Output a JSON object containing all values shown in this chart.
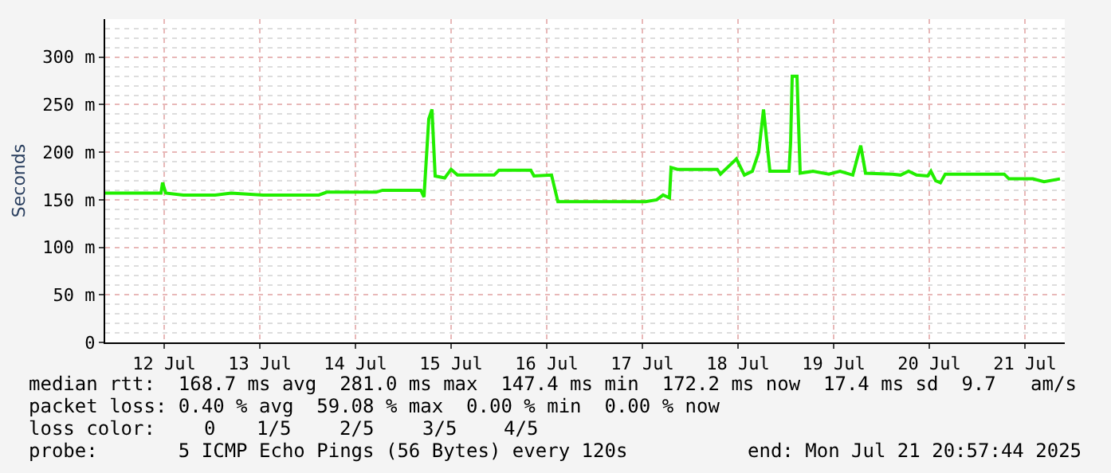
{
  "chart_data": {
    "type": "line",
    "ylabel": "Seconds",
    "x": [
      "2025-07-11T21:12",
      "2025-07-12T11:12",
      "2025-07-12T11:36",
      "2025-07-12T12:24",
      "2025-07-12T16:48",
      "2025-07-13T00:48",
      "2025-07-13T04:48",
      "2025-07-13T12:48",
      "2025-07-14T02:48",
      "2025-07-14T04:48",
      "2025-07-14T17:12",
      "2025-07-14T18:48",
      "2025-07-15T04:24",
      "2025-07-15T05:12",
      "2025-07-15T06:24",
      "2025-07-15T07:12",
      "2025-07-15T08:00",
      "2025-07-15T10:24",
      "2025-07-15T12:00",
      "2025-07-15T13:36",
      "2025-07-15T22:48",
      "2025-07-16T00:00",
      "2025-07-16T08:00",
      "2025-07-16T08:48",
      "2025-07-16T13:12",
      "2025-07-16T14:48",
      "2025-07-17T12:48",
      "2025-07-17T15:36",
      "2025-07-17T17:12",
      "2025-07-17T18:48",
      "2025-07-17T19:12",
      "2025-07-17T20:48",
      "2025-07-18T06:48",
      "2025-07-18T07:36",
      "2025-07-18T11:36",
      "2025-07-18T13:36",
      "2025-07-18T15:36",
      "2025-07-18T17:12",
      "2025-07-18T18:24",
      "2025-07-18T20:00",
      "2025-07-19T00:48",
      "2025-07-19T01:12",
      "2025-07-19T01:36",
      "2025-07-19T02:48",
      "2025-07-19T03:36",
      "2025-07-19T06:48",
      "2025-07-19T10:48",
      "2025-07-19T13:36",
      "2025-07-19T16:48",
      "2025-07-19T18:00",
      "2025-07-19T18:48",
      "2025-07-19T20:00",
      "2025-07-20T02:48",
      "2025-07-20T04:48",
      "2025-07-20T06:48",
      "2025-07-20T08:48",
      "2025-07-20T11:36",
      "2025-07-20T12:24",
      "2025-07-20T13:36",
      "2025-07-20T14:48",
      "2025-07-20T16:00",
      "2025-07-21T06:48",
      "2025-07-21T08:00",
      "2025-07-21T14:00",
      "2025-07-21T16:48",
      "2025-07-21T20:48"
    ],
    "series": [
      {
        "color": "#22ee00",
        "values": [
          157,
          157,
          168,
          157,
          155,
          155,
          157,
          155,
          155,
          158,
          158,
          160,
          160,
          153,
          235,
          245,
          175,
          173,
          182,
          176,
          176,
          181,
          181,
          175,
          176,
          148,
          148,
          150,
          155,
          152,
          184,
          182,
          182,
          177,
          193,
          176,
          180,
          200,
          245,
          180,
          180,
          210,
          280,
          280,
          178,
          180,
          177,
          180,
          176,
          195,
          207,
          178,
          177,
          176,
          180,
          176,
          175,
          180,
          170,
          168,
          177,
          177,
          172,
          172,
          169,
          172
        ]
      }
    ],
    "xlim": [
      "2025-07-11T21:12",
      "2025-07-21T22:00"
    ],
    "xticks": [
      {
        "value": "2025-07-12T12:00",
        "label": "12 Jul"
      },
      {
        "value": "2025-07-13T12:00",
        "label": "13 Jul"
      },
      {
        "value": "2025-07-14T12:00",
        "label": "14 Jul"
      },
      {
        "value": "2025-07-15T12:00",
        "label": "15 Jul"
      },
      {
        "value": "2025-07-16T12:00",
        "label": "16 Jul"
      },
      {
        "value": "2025-07-17T12:00",
        "label": "17 Jul"
      },
      {
        "value": "2025-07-18T12:00",
        "label": "18 Jul"
      },
      {
        "value": "2025-07-19T12:00",
        "label": "19 Jul"
      },
      {
        "value": "2025-07-20T12:00",
        "label": "20 Jul"
      },
      {
        "value": "2025-07-21T12:00",
        "label": "21 Jul"
      }
    ],
    "ylim": [
      0,
      340
    ],
    "yticks": [
      0,
      {
        "value": 50,
        "label": "50 m"
      },
      {
        "value": 100,
        "label": "100 m"
      },
      {
        "value": 150,
        "label": "150 m"
      },
      {
        "value": 200,
        "label": "200 m"
      },
      {
        "value": 250,
        "label": "250 m"
      },
      {
        "value": 300,
        "label": "300 m"
      }
    ],
    "grid": true,
    "marker": "none",
    "line_style": "solid",
    "annotations": [
      "median rtt:  168.7 ms avg  281.0 ms max  147.4 ms min  172.2 ms now  17.4 ms sd  9.7   am/s",
      "packet loss: 0.40 % avg  59.08 % max  0.00 % min  0.00 % now",
      "loss color:",
      "0",
      "1/5",
      "2/5",
      "3/5",
      "4/5",
      "probe:       5 ICMP Echo Pings (56 Bytes) every 120s",
      "end: Mon Jul 21 20:57:44 2025"
    ]
  }
}
